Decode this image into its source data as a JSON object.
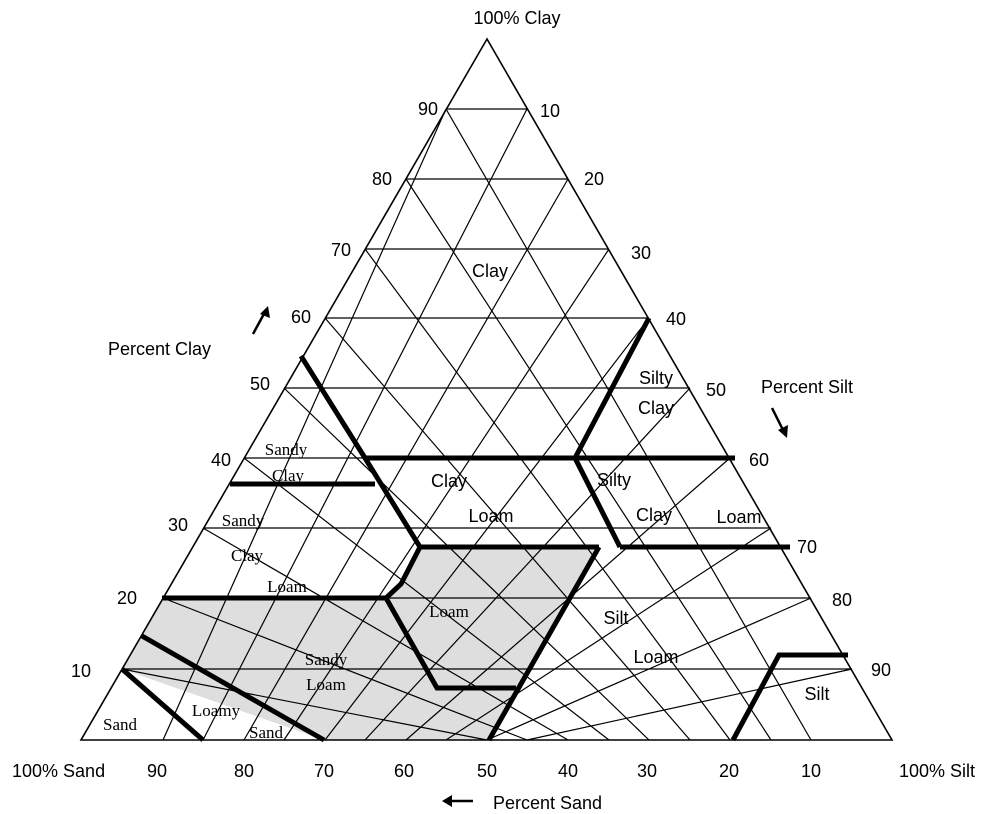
{
  "vertices": {
    "top": "100% Clay",
    "left": "100% Sand",
    "right": "100% Silt"
  },
  "axes": {
    "clay": {
      "title": "Percent Clay",
      "ticks": [
        "10",
        "20",
        "30",
        "40",
        "50",
        "60",
        "70",
        "80",
        "90"
      ]
    },
    "silt": {
      "title": "Percent Silt",
      "ticks": [
        "10",
        "20",
        "30",
        "40",
        "50",
        "60",
        "70",
        "80",
        "90"
      ]
    },
    "sand": {
      "title": "Percent Sand",
      "ticks": [
        "90",
        "80",
        "70",
        "60",
        "50",
        "40",
        "30",
        "20",
        "10"
      ]
    }
  },
  "regions": {
    "clay_top": "Clay",
    "silty_clay_1": "Silty",
    "silty_clay_2": "Clay",
    "sandy_clay_1": "Sandy",
    "sandy_clay_2": "Clay",
    "clay_loam_1": "Clay",
    "clay_loam_2": "Loam",
    "silty_clay_loam_1": "Silty",
    "silty_clay_loam_2": "Clay",
    "silty_clay_loam_3": "Loam",
    "sandy_clay_loam_1": "Sandy",
    "sandy_clay_loam_2": "Clay",
    "sandy_clay_loam_3": "Loam",
    "loam": "Loam",
    "silt_loam_1": "Silt",
    "silt_loam_2": "Loam",
    "sandy_loam_1": "Sandy",
    "sandy_loam_2": "Loam",
    "loamy_sand_1": "Loamy",
    "loamy_sand_2": "Sand",
    "sand": "Sand",
    "silt": "Silt"
  },
  "colors": {
    "highlight": "#dedede",
    "lines": "#000000"
  }
}
